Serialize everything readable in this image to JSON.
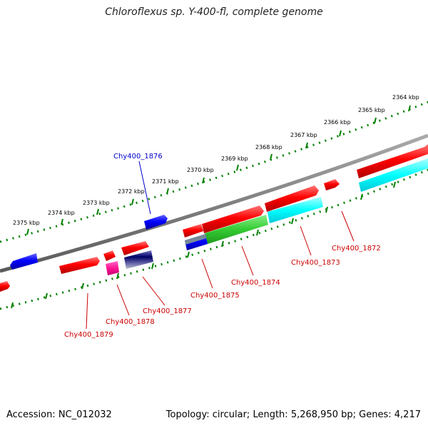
{
  "title": "Chloroflexus sp. Y-400-fl, complete genome",
  "footer": {
    "accession_label": "Accession:",
    "accession": "NC_012032",
    "topology_label": "Topology:",
    "topology": "circular",
    "length_label": "Length:",
    "length": "5,268,950 bp",
    "genes_label": "Genes:",
    "genes": "4,217"
  },
  "ticks": {
    "t2364": "2364 kbp",
    "t2365": "2365 kbp",
    "t2366": "2366 kbp",
    "t2367": "2367 kbp",
    "t2368": "2368 kbp",
    "t2369": "2369 kbp",
    "t2370": "2370 kbp",
    "t2371": "2371 kbp",
    "t2372": "2372 kbp",
    "t2373": "2373 kbp",
    "t2374": "2374 kbp",
    "t2375": "2375 kbp"
  },
  "genes": {
    "g1872": "Chy400_1872",
    "g1873": "Chy400_1873",
    "g1874": "Chy400_1874",
    "g1875": "Chy400_1875",
    "g1876": "Chy400_1876",
    "g1877": "Chy400_1877",
    "g1878": "Chy400_1878",
    "g1879": "Chy400_1879"
  },
  "colors": {
    "backbone": "#808080",
    "tick": "#008000",
    "forward": "#ff0000",
    "reverse": "#0000ff",
    "cyan": "#00ffff",
    "green": "#33cc33",
    "magenta": "#ff1493",
    "navy": "#000066",
    "label_red": "#cc0000",
    "label_blue": "#0000cc"
  }
}
